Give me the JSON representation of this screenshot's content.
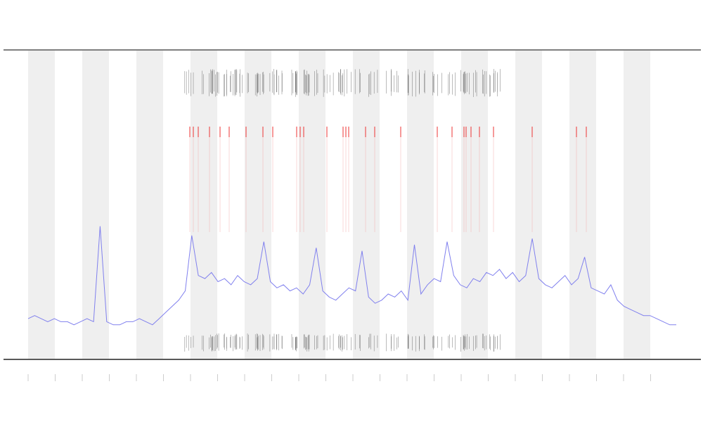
{
  "chart_data": {
    "type": "line",
    "color": "#8080ee",
    "ylim": [
      0,
      100
    ],
    "values": [
      13,
      14,
      13,
      12,
      13,
      12,
      12,
      11,
      12,
      13,
      12,
      43,
      12,
      11,
      11,
      12,
      12,
      13,
      12,
      11,
      13,
      15,
      17,
      19,
      22,
      40,
      27,
      26,
      28,
      25,
      26,
      24,
      27,
      25,
      24,
      26,
      38,
      25,
      23,
      24,
      22,
      23,
      21,
      24,
      36,
      22,
      20,
      19,
      21,
      23,
      22,
      35,
      20,
      18,
      19,
      21,
      20,
      22,
      19,
      37,
      21,
      24,
      26,
      25,
      38,
      27,
      24,
      23,
      26,
      25,
      28,
      27,
      29,
      26,
      28,
      25,
      27,
      39,
      26,
      24,
      23,
      25,
      27,
      24,
      26,
      33,
      23,
      22,
      21,
      24,
      19,
      17,
      16,
      15,
      14,
      14,
      13,
      12,
      11,
      11
    ]
  }
}
